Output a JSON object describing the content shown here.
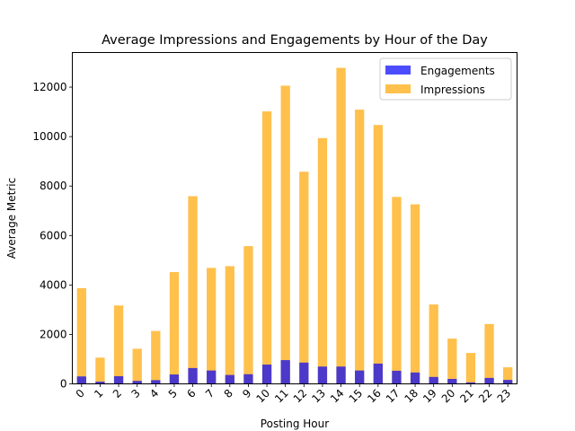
{
  "chart_data": {
    "type": "bar",
    "title": "Average Impressions and Engagements by Hour of the Day",
    "xlabel": "Posting Hour",
    "ylabel": "Average Metric",
    "categories": [
      "0",
      "1",
      "2",
      "3",
      "4",
      "5",
      "6",
      "7",
      "8",
      "9",
      "10",
      "11",
      "12",
      "13",
      "14",
      "15",
      "16",
      "17",
      "18",
      "19",
      "20",
      "21",
      "22",
      "23"
    ],
    "ylim": [
      0,
      13400
    ],
    "yticks": [
      0,
      2000,
      4000,
      6000,
      8000,
      10000,
      12000
    ],
    "legend_position": "top-right",
    "series": [
      {
        "name": "Engagements",
        "color": "#0000ff",
        "opacity": 0.7,
        "values": [
          300,
          90,
          310,
          120,
          150,
          380,
          640,
          540,
          360,
          390,
          780,
          960,
          860,
          700,
          700,
          540,
          820,
          530,
          460,
          280,
          200,
          60,
          240,
          160
        ]
      },
      {
        "name": "Impressions",
        "color": "#ffa500",
        "opacity": 0.7,
        "values": [
          3870,
          1060,
          3170,
          1420,
          2140,
          4520,
          7590,
          4690,
          4760,
          5570,
          11020,
          12060,
          8580,
          9940,
          12780,
          11090,
          10470,
          7560,
          7260,
          3210,
          1830,
          1250,
          2420,
          670
        ]
      }
    ]
  }
}
